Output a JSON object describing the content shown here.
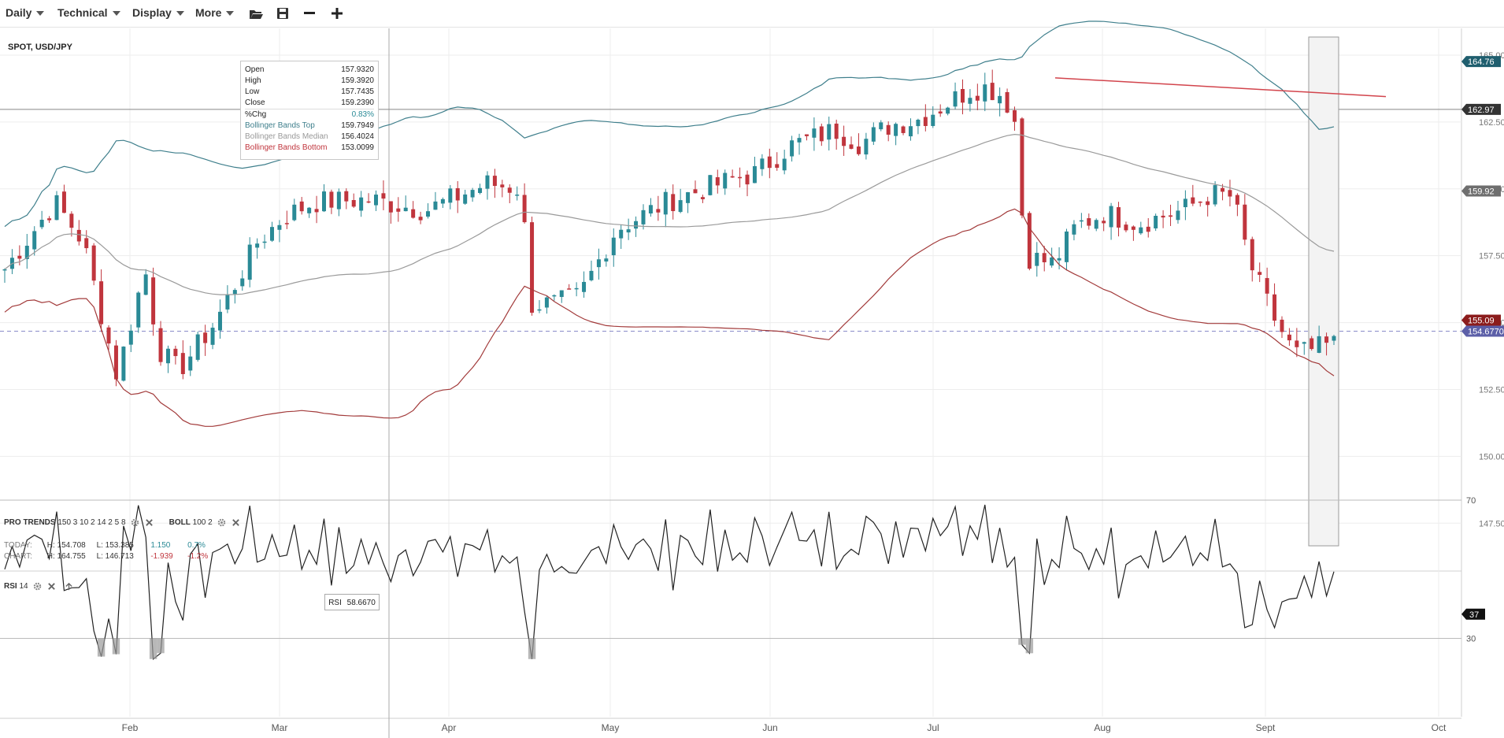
{
  "toolbar": {
    "menus": [
      "Daily",
      "Technical",
      "Display",
      "More"
    ],
    "icons": [
      "folder-open-icon",
      "save-icon",
      "zoom-out-icon",
      "zoom-in-icon"
    ]
  },
  "chart": {
    "title": "SPOT, USD/JPY",
    "ohlc": {
      "open_label": "Open",
      "open": "157.9320",
      "high_label": "High",
      "high": "159.3920",
      "low_label": "Low",
      "low": "157.7435",
      "close_label": "Close",
      "close": "159.2390",
      "chg_label": "%Chg",
      "chg": "0.83%",
      "bb_top_label": "Bollinger Bands Top",
      "bb_top": "159.7949",
      "bb_median_label": "Bollinger Bands Median",
      "bb_median": "156.4024",
      "bb_bottom_label": "Bollinger Bands Bottom",
      "bb_bottom": "153.0099"
    },
    "price_ticks": [
      "165.00",
      "162.50",
      "160.00",
      "157.50",
      "155.00",
      "152.50",
      "150.00",
      "147.50"
    ],
    "price_tick_values": [
      165,
      162.5,
      160,
      157.5,
      155,
      152.5,
      150,
      147.5
    ],
    "price_range": [
      145.8,
      166.0
    ],
    "price_badges": [
      {
        "label": "164.76",
        "value": 164.76,
        "color": "#1f5e6e"
      },
      {
        "label": "162.97",
        "value": 162.97,
        "color": "#333333"
      },
      {
        "label": "159.92",
        "value": 159.92,
        "color": "#6e6e6e"
      },
      {
        "label": "155.09",
        "value": 155.09,
        "color": "#8b1c1c"
      },
      {
        "label": "154.6770",
        "value": 154.677,
        "color": "#5c5fa8"
      }
    ],
    "months": [
      "Feb",
      "Mar",
      "Apr",
      "May",
      "Jun",
      "Jul",
      "Aug",
      "Sept",
      "Oct"
    ],
    "colors": {
      "up": "#2a8a96",
      "down": "#c0353d",
      "bb_top": "#3f7f8c",
      "bb_median": "#9a9a9a",
      "bb_bottom": "#a23a3a",
      "trend": "#d2444c",
      "rsi": "#222222"
    }
  },
  "legend": {
    "pro_trends_label": "PRO TRENDS",
    "pro_trends_params": "150 3 10 2 14 2 5 8",
    "boll_label": "BOLL",
    "boll_params": "100 2"
  },
  "stats": {
    "today_label": "TODAY:",
    "today_h": "H: 154.708",
    "today_l": "L: 153.385",
    "today_chg": "1.150",
    "today_pct": "0.7%",
    "chart_label": "CHART:",
    "chart_h": "H: 164.755",
    "chart_l": "L: 146.713",
    "chart_chg": "-1.939",
    "chart_pct": "-1.2%"
  },
  "rsi": {
    "label": "RSI",
    "period": "14",
    "tooltip_label": "RSI",
    "tooltip_value": "58.6670",
    "ticks": [
      "70",
      "30"
    ],
    "badge": "37",
    "badge_value": 37
  }
}
